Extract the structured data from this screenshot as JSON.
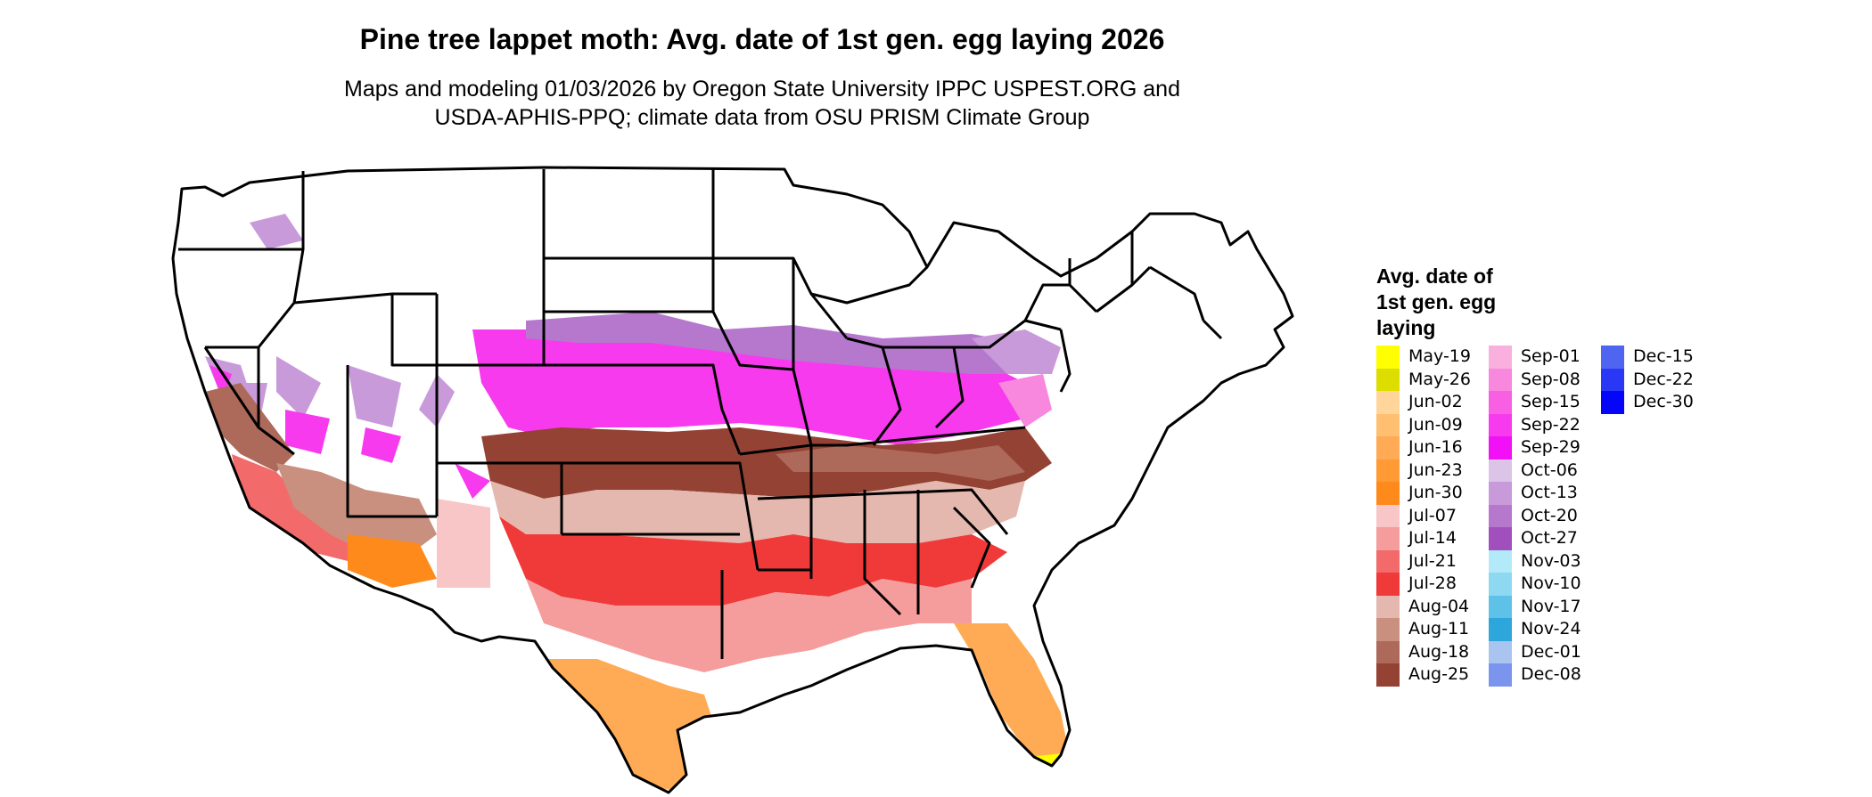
{
  "header": {
    "title": "Pine tree lappet moth: Avg. date of 1st gen. egg laying 2026",
    "subtitle_line1": "Maps and modeling 01/03/2026 by Oregon State University IPPC USPEST.ORG and",
    "subtitle_line2": "USDA-APHIS-PPQ; climate data from OSU PRISM Climate Group"
  },
  "legend": {
    "title_lines": [
      "Avg. date of",
      "1st gen. egg",
      "laying"
    ],
    "columns": [
      [
        {
          "label": "May-19",
          "color": "#ffff00"
        },
        {
          "label": "May-26",
          "color": "#dddd00"
        },
        {
          "label": "Jun-02",
          "color": "#ffd59a"
        },
        {
          "label": "Jun-09",
          "color": "#ffbf70"
        },
        {
          "label": "Jun-16",
          "color": "#ffab55"
        },
        {
          "label": "Jun-23",
          "color": "#ff9a35"
        },
        {
          "label": "Jun-30",
          "color": "#ff8a1c"
        },
        {
          "label": "Jul-07",
          "color": "#f8c6c6"
        },
        {
          "label": "Jul-14",
          "color": "#f59c9c"
        },
        {
          "label": "Jul-21",
          "color": "#f26a6a"
        },
        {
          "label": "Jul-28",
          "color": "#f03a3a"
        },
        {
          "label": "Aug-04",
          "color": "#e4b8ae"
        },
        {
          "label": "Aug-11",
          "color": "#c99080"
        },
        {
          "label": "Aug-18",
          "color": "#ad6a5a"
        },
        {
          "label": "Aug-25",
          "color": "#944233"
        }
      ],
      [
        {
          "label": "Sep-01",
          "color": "#f9b0de"
        },
        {
          "label": "Sep-08",
          "color": "#f887de"
        },
        {
          "label": "Sep-15",
          "color": "#f85fe3"
        },
        {
          "label": "Sep-22",
          "color": "#f73aee"
        },
        {
          "label": "Sep-29",
          "color": "#f210f6"
        },
        {
          "label": "Oct-06",
          "color": "#dcc4e8"
        },
        {
          "label": "Oct-13",
          "color": "#c99ad9"
        },
        {
          "label": "Oct-20",
          "color": "#b578cd"
        },
        {
          "label": "Oct-27",
          "color": "#a24fbe"
        },
        {
          "label": "Nov-03",
          "color": "#b3eafa"
        },
        {
          "label": "Nov-10",
          "color": "#8ed8f2"
        },
        {
          "label": "Nov-17",
          "color": "#5ec2e8"
        },
        {
          "label": "Nov-24",
          "color": "#2da6dc"
        },
        {
          "label": "Dec-01",
          "color": "#a9c4ef"
        },
        {
          "label": "Dec-08",
          "color": "#7b95ef"
        }
      ],
      [
        {
          "label": "Dec-15",
          "color": "#5064f2"
        },
        {
          "label": "Dec-22",
          "color": "#2a38f6"
        },
        {
          "label": "Dec-30",
          "color": "#0505fa"
        }
      ]
    ]
  }
}
